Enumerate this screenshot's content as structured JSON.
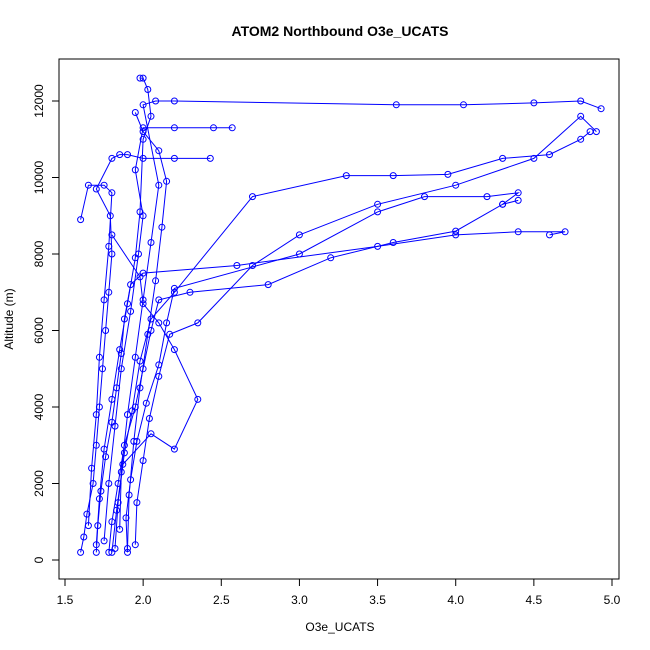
{
  "chart_data": {
    "type": "scatter",
    "title": "ATOM2 Northbound O3e_UCATS",
    "xlabel": "O3e_UCATS",
    "ylabel": "Altitude (m)",
    "xlim": [
      1.5,
      5.0
    ],
    "ylim": [
      0,
      12600
    ],
    "xticks": [
      "1.5",
      "2.0",
      "2.5",
      "3.0",
      "3.5",
      "4.0",
      "4.5",
      "5.0"
    ],
    "yticks": [
      "0",
      "2000",
      "4000",
      "6000",
      "8000",
      "10000",
      "12000"
    ],
    "grid": false,
    "legend": "none",
    "marker": "open-circle",
    "connected": true,
    "color": "#0000ff",
    "series": [
      {
        "points": [
          [
            1.6,
            200
          ],
          [
            1.62,
            600
          ],
          [
            1.64,
            1200
          ],
          [
            1.68,
            2000
          ],
          [
            1.7,
            3000
          ],
          [
            1.72,
            4000
          ],
          [
            1.74,
            5000
          ],
          [
            1.76,
            6000
          ],
          [
            1.78,
            7000
          ],
          [
            1.8,
            8000
          ],
          [
            1.79,
            9000
          ],
          [
            1.7,
            9700
          ],
          [
            1.8,
            10500
          ],
          [
            1.85,
            10600
          ],
          [
            1.9,
            10600
          ],
          [
            2.0,
            10500
          ],
          [
            2.2,
            10500
          ],
          [
            2.43,
            10500
          ]
        ]
      },
      {
        "points": [
          [
            1.7,
            200
          ],
          [
            1.71,
            900
          ],
          [
            1.73,
            1800
          ],
          [
            1.76,
            2700
          ],
          [
            1.8,
            3600
          ],
          [
            1.83,
            4500
          ],
          [
            1.86,
            5400
          ],
          [
            1.88,
            6300
          ],
          [
            1.92,
            7200
          ],
          [
            2.0,
            7500
          ],
          [
            2.6,
            7700
          ],
          [
            3.5,
            8200
          ],
          [
            4.0,
            8500
          ],
          [
            4.4,
            8580
          ],
          [
            4.7,
            8580
          ],
          [
            4.6,
            8500
          ]
        ]
      },
      {
        "points": [
          [
            1.78,
            200
          ],
          [
            1.8,
            1000
          ],
          [
            1.84,
            2000
          ],
          [
            1.88,
            3000
          ],
          [
            1.95,
            4000
          ],
          [
            2.0,
            5000
          ],
          [
            2.05,
            6000
          ],
          [
            2.1,
            6800
          ],
          [
            2.3,
            7000
          ],
          [
            2.8,
            7200
          ],
          [
            3.2,
            7900
          ],
          [
            3.6,
            8300
          ],
          [
            4.0,
            8600
          ],
          [
            4.3,
            9300
          ],
          [
            4.4,
            9400
          ]
        ]
      },
      {
        "points": [
          [
            1.9,
            200
          ],
          [
            1.89,
            1100
          ],
          [
            1.92,
            2100
          ],
          [
            1.96,
            3100
          ],
          [
            2.02,
            4100
          ],
          [
            2.1,
            5100
          ],
          [
            2.15,
            6200
          ],
          [
            2.2,
            7100
          ],
          [
            3.0,
            8000
          ],
          [
            3.5,
            9100
          ],
          [
            3.8,
            9500
          ],
          [
            4.2,
            9500
          ],
          [
            4.4,
            9600
          ],
          [
            4.3,
            9300
          ]
        ]
      },
      {
        "points": [
          [
            1.82,
            300
          ],
          [
            1.84,
            1500
          ],
          [
            1.88,
            2800
          ],
          [
            1.93,
            3900
          ],
          [
            1.98,
            5200
          ],
          [
            2.05,
            6300
          ],
          [
            2.2,
            7000
          ],
          [
            2.7,
            9500
          ],
          [
            3.3,
            10050
          ],
          [
            3.6,
            10050
          ],
          [
            3.95,
            10080
          ],
          [
            4.3,
            10500
          ],
          [
            4.6,
            10600
          ],
          [
            4.8,
            11000
          ],
          [
            4.86,
            11200
          ]
        ]
      },
      {
        "points": [
          [
            1.95,
            400
          ],
          [
            1.96,
            1500
          ],
          [
            2.0,
            2600
          ],
          [
            2.04,
            3700
          ],
          [
            2.1,
            4800
          ],
          [
            2.17,
            5900
          ],
          [
            2.35,
            6200
          ],
          [
            2.7,
            7700
          ],
          [
            3.0,
            8500
          ],
          [
            3.5,
            9300
          ],
          [
            4.0,
            9800
          ],
          [
            4.5,
            10500
          ],
          [
            4.8,
            11600
          ],
          [
            4.9,
            11200
          ]
        ]
      },
      {
        "points": [
          [
            1.75,
            500
          ],
          [
            1.78,
            2000
          ],
          [
            1.82,
            3500
          ],
          [
            1.86,
            5000
          ],
          [
            1.92,
            6500
          ],
          [
            1.97,
            8000
          ],
          [
            2.0,
            9000
          ],
          [
            1.95,
            10200
          ],
          [
            2.0,
            11300
          ],
          [
            2.2,
            11300
          ],
          [
            2.45,
            11300
          ],
          [
            2.57,
            11300
          ]
        ]
      },
      {
        "points": [
          [
            1.85,
            800
          ],
          [
            1.86,
            2300
          ],
          [
            1.9,
            3800
          ],
          [
            1.95,
            5300
          ],
          [
            2.0,
            6800
          ],
          [
            2.05,
            8300
          ],
          [
            2.1,
            9800
          ],
          [
            2.0,
            11900
          ],
          [
            2.08,
            12000
          ],
          [
            2.2,
            12000
          ],
          [
            3.62,
            11900
          ],
          [
            4.05,
            11900
          ],
          [
            4.5,
            11950
          ],
          [
            4.8,
            12000
          ],
          [
            4.93,
            11800
          ]
        ]
      },
      {
        "points": [
          [
            1.7,
            400
          ],
          [
            1.72,
            1600
          ],
          [
            1.75,
            2900
          ],
          [
            1.8,
            4200
          ],
          [
            1.85,
            5500
          ],
          [
            1.9,
            6700
          ],
          [
            1.95,
            7900
          ],
          [
            1.98,
            9100
          ],
          [
            2.0,
            11000
          ],
          [
            2.05,
            11600
          ],
          [
            2.03,
            12300
          ],
          [
            2.0,
            12600
          ],
          [
            1.98,
            12600
          ]
        ]
      },
      {
        "points": [
          [
            1.8,
            200
          ],
          [
            1.83,
            1300
          ],
          [
            1.87,
            2500
          ],
          [
            2.05,
            3300
          ],
          [
            2.2,
            2900
          ],
          [
            2.35,
            4200
          ],
          [
            2.2,
            5500
          ],
          [
            2.1,
            6200
          ],
          [
            2.0,
            6700
          ],
          [
            1.98,
            7400
          ],
          [
            1.8,
            8500
          ]
        ]
      },
      {
        "points": [
          [
            1.65,
            900
          ],
          [
            1.67,
            2400
          ],
          [
            1.7,
            3800
          ],
          [
            1.72,
            5300
          ],
          [
            1.75,
            6800
          ],
          [
            1.78,
            8200
          ],
          [
            1.8,
            9600
          ],
          [
            1.75,
            9800
          ],
          [
            1.65,
            9800
          ],
          [
            1.6,
            8900
          ]
        ]
      },
      {
        "points": [
          [
            1.9,
            300
          ],
          [
            1.91,
            1700
          ],
          [
            1.94,
            3100
          ],
          [
            1.98,
            4500
          ],
          [
            2.03,
            5900
          ],
          [
            2.08,
            7300
          ],
          [
            2.12,
            8700
          ],
          [
            2.15,
            9900
          ],
          [
            2.1,
            10700
          ],
          [
            2.0,
            11200
          ],
          [
            1.95,
            11700
          ]
        ]
      }
    ]
  }
}
